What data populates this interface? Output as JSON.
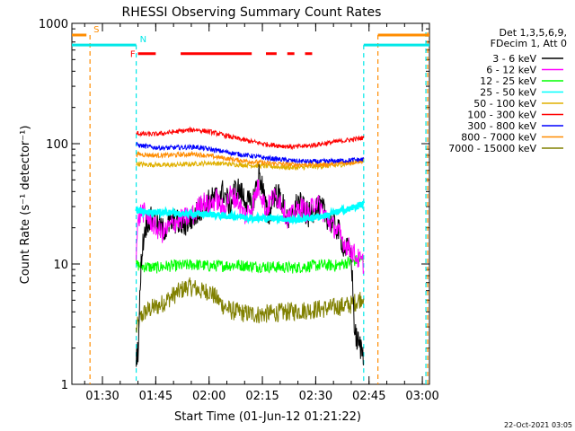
{
  "chart_data": {
    "type": "line",
    "title": "RHESSI Observing Summary Count Rates",
    "xlabel": "Start Time (01-Jun-12 01:21:22)",
    "ylabel": "Count Rate (s⁻¹ detector⁻¹)",
    "timestamp": "22-Oct-2021 03:05",
    "y_scale": "log",
    "ylim": [
      1,
      1000
    ],
    "xlim_minutes_after_0100": [
      21.4,
      122
    ],
    "x_ticks": [
      {
        "label": "01:30",
        "minute": 30
      },
      {
        "label": "01:45",
        "minute": 45
      },
      {
        "label": "02:00",
        "minute": 60
      },
      {
        "label": "02:15",
        "minute": 75
      },
      {
        "label": "02:30",
        "minute": 90
      },
      {
        "label": "02:45",
        "minute": 105
      },
      {
        "label": "03:00",
        "minute": 120
      }
    ],
    "y_ticks": [
      {
        "label": "1",
        "value": 1
      },
      {
        "label": "10",
        "value": 10
      },
      {
        "label": "100",
        "value": 100
      },
      {
        "label": "1000",
        "value": 1000
      }
    ],
    "legend_header": [
      "Det 1,3,5,6,9,",
      "FDecim 1, Att 0"
    ],
    "legend_position": "right",
    "data_window_minutes": [
      39.5,
      103.5
    ],
    "series": [
      {
        "name": "3 - 6 keV",
        "color": "#000000",
        "x": [
          39.5,
          40,
          41,
          42,
          43,
          45,
          47,
          50,
          53,
          56,
          58,
          60,
          62,
          64,
          66,
          67,
          68,
          70,
          72,
          74,
          75,
          76,
          77,
          78,
          80,
          82,
          83,
          84,
          85,
          86,
          88,
          90,
          92,
          94,
          96,
          98,
          100,
          101,
          102,
          103.5
        ],
        "y": [
          1.8,
          1.9,
          12,
          20,
          24,
          22,
          19,
          23,
          21,
          25,
          30,
          33,
          36,
          40,
          30,
          40,
          42,
          35,
          30,
          55,
          45,
          28,
          25,
          38,
          36,
          24,
          22,
          28,
          33,
          30,
          25,
          30,
          28,
          23,
          20,
          14,
          12,
          2.6,
          2.2,
          1.8
        ]
      },
      {
        "name": "6 - 12 keV",
        "color": "#ff00ff",
        "x": [
          39.5,
          40,
          41,
          43,
          45,
          47,
          50,
          53,
          56,
          58,
          60,
          62,
          64,
          66,
          68,
          70,
          72,
          74,
          76,
          78,
          80,
          82,
          84,
          86,
          88,
          90,
          92,
          94,
          96,
          98,
          100,
          101,
          102,
          103.5
        ],
        "y": [
          13,
          22,
          28,
          24,
          20,
          18,
          22,
          24,
          26,
          34,
          30,
          35,
          28,
          38,
          34,
          25,
          30,
          45,
          28,
          36,
          34,
          24,
          26,
          30,
          26,
          34,
          27,
          22,
          19,
          15,
          13,
          12,
          11,
          10
        ]
      },
      {
        "name": "12 - 25 keV",
        "color": "#00ff00",
        "x": [
          39.5,
          42,
          45,
          48,
          52,
          56,
          60,
          64,
          68,
          72,
          76,
          80,
          84,
          88,
          92,
          96,
          100,
          103.5
        ],
        "y": [
          9.8,
          9.5,
          9.3,
          9.6,
          9.7,
          9.9,
          9.6,
          9.7,
          9.8,
          9.6,
          9.5,
          9.4,
          9.3,
          9.6,
          9.8,
          9.7,
          10.5,
          11
        ]
      },
      {
        "name": "25 - 50 keV",
        "color": "#00ffff",
        "x": [
          39.5,
          42,
          45,
          48,
          52,
          56,
          60,
          64,
          68,
          72,
          76,
          80,
          84,
          88,
          92,
          96,
          100,
          103.5
        ],
        "y": [
          28,
          27,
          27,
          27,
          26,
          26,
          26,
          25,
          25,
          24,
          24,
          24,
          23,
          24,
          25,
          27,
          29,
          32
        ]
      },
      {
        "name": "50 - 100 keV",
        "color": "#e0b000",
        "x": [
          39.5,
          42,
          45,
          48,
          52,
          56,
          60,
          64,
          68,
          72,
          76,
          80,
          84,
          88,
          92,
          96,
          100,
          103.5
        ],
        "y": [
          68,
          67,
          67,
          66,
          67,
          68,
          69,
          68,
          67,
          66,
          65,
          64,
          63,
          64,
          65,
          66,
          69,
          74
        ]
      },
      {
        "name": "100 - 300 keV",
        "color": "#ff0000",
        "x": [
          39.5,
          42,
          45,
          48,
          52,
          56,
          60,
          64,
          68,
          72,
          76,
          80,
          84,
          88,
          92,
          96,
          100,
          103.5
        ],
        "y": [
          122,
          120,
          120,
          123,
          127,
          131,
          126,
          118,
          110,
          104,
          99,
          96,
          94,
          96,
          100,
          104,
          108,
          112
        ]
      },
      {
        "name": "300 - 800 keV",
        "color": "#0000ff",
        "x": [
          39.5,
          42,
          45,
          48,
          52,
          56,
          60,
          64,
          68,
          72,
          76,
          80,
          84,
          88,
          92,
          96,
          100,
          103.5
        ],
        "y": [
          98,
          95,
          93,
          92,
          93,
          94,
          90,
          86,
          82,
          79,
          76,
          74,
          72,
          71,
          71,
          72,
          73,
          74
        ]
      },
      {
        "name": "800 - 7000 keV",
        "color": "#ff8c00",
        "x": [
          39.5,
          42,
          45,
          48,
          52,
          56,
          60,
          64,
          68,
          72,
          76,
          80,
          84,
          88,
          92,
          96,
          100,
          103.5
        ],
        "y": [
          82,
          81,
          80,
          80,
          81,
          82,
          79,
          76,
          73,
          71,
          69,
          68,
          67,
          67,
          67,
          68,
          70,
          72
        ]
      },
      {
        "name": "7000 - 15000 keV",
        "color": "#808000",
        "x": [
          39.5,
          40.5,
          42,
          44,
          46,
          48,
          50,
          52,
          54,
          56,
          58,
          60,
          62,
          64,
          66,
          68,
          70,
          74,
          78,
          82,
          86,
          90,
          94,
          98,
          100,
          102,
          103.5
        ],
        "y": [
          2.8,
          3.5,
          4.0,
          4.3,
          4.5,
          5.0,
          5.5,
          6.0,
          6.5,
          6.3,
          5.9,
          6.0,
          5.2,
          4.5,
          4.1,
          4.0,
          3.9,
          3.8,
          3.9,
          4.0,
          4.1,
          4.2,
          4.3,
          4.5,
          4.6,
          5.0,
          5.5
        ]
      }
    ],
    "flags": [
      {
        "label": "S",
        "color": "#ff8c00",
        "start": 21.4,
        "end": 25.5,
        "y": 800,
        "line_x": 26.5
      },
      {
        "label": "N",
        "color": "#00e8e8",
        "start": 21.4,
        "end": 39.5,
        "y": 660,
        "line_x": 39.5
      },
      {
        "label": "F",
        "color": "#ff0000",
        "y": 560,
        "segments": [
          [
            40,
            45
          ],
          [
            52,
            72
          ],
          [
            76,
            79
          ],
          [
            82,
            84
          ],
          [
            87,
            89
          ]
        ]
      },
      {
        "label": "",
        "color": "#00e8e8",
        "start": 103.5,
        "end": 122,
        "y": 660,
        "line_x": 103.5
      },
      {
        "label": "",
        "color": "#ff8c00",
        "start": 107.5,
        "end": 122,
        "y": 800,
        "line_x": 107.5
      }
    ],
    "extra_vertical_lines": [
      {
        "minute": 121,
        "color": "#00e8e8",
        "dashed": true
      },
      {
        "minute": 121.5,
        "color": "#ff8c00",
        "dashed": true
      }
    ]
  }
}
